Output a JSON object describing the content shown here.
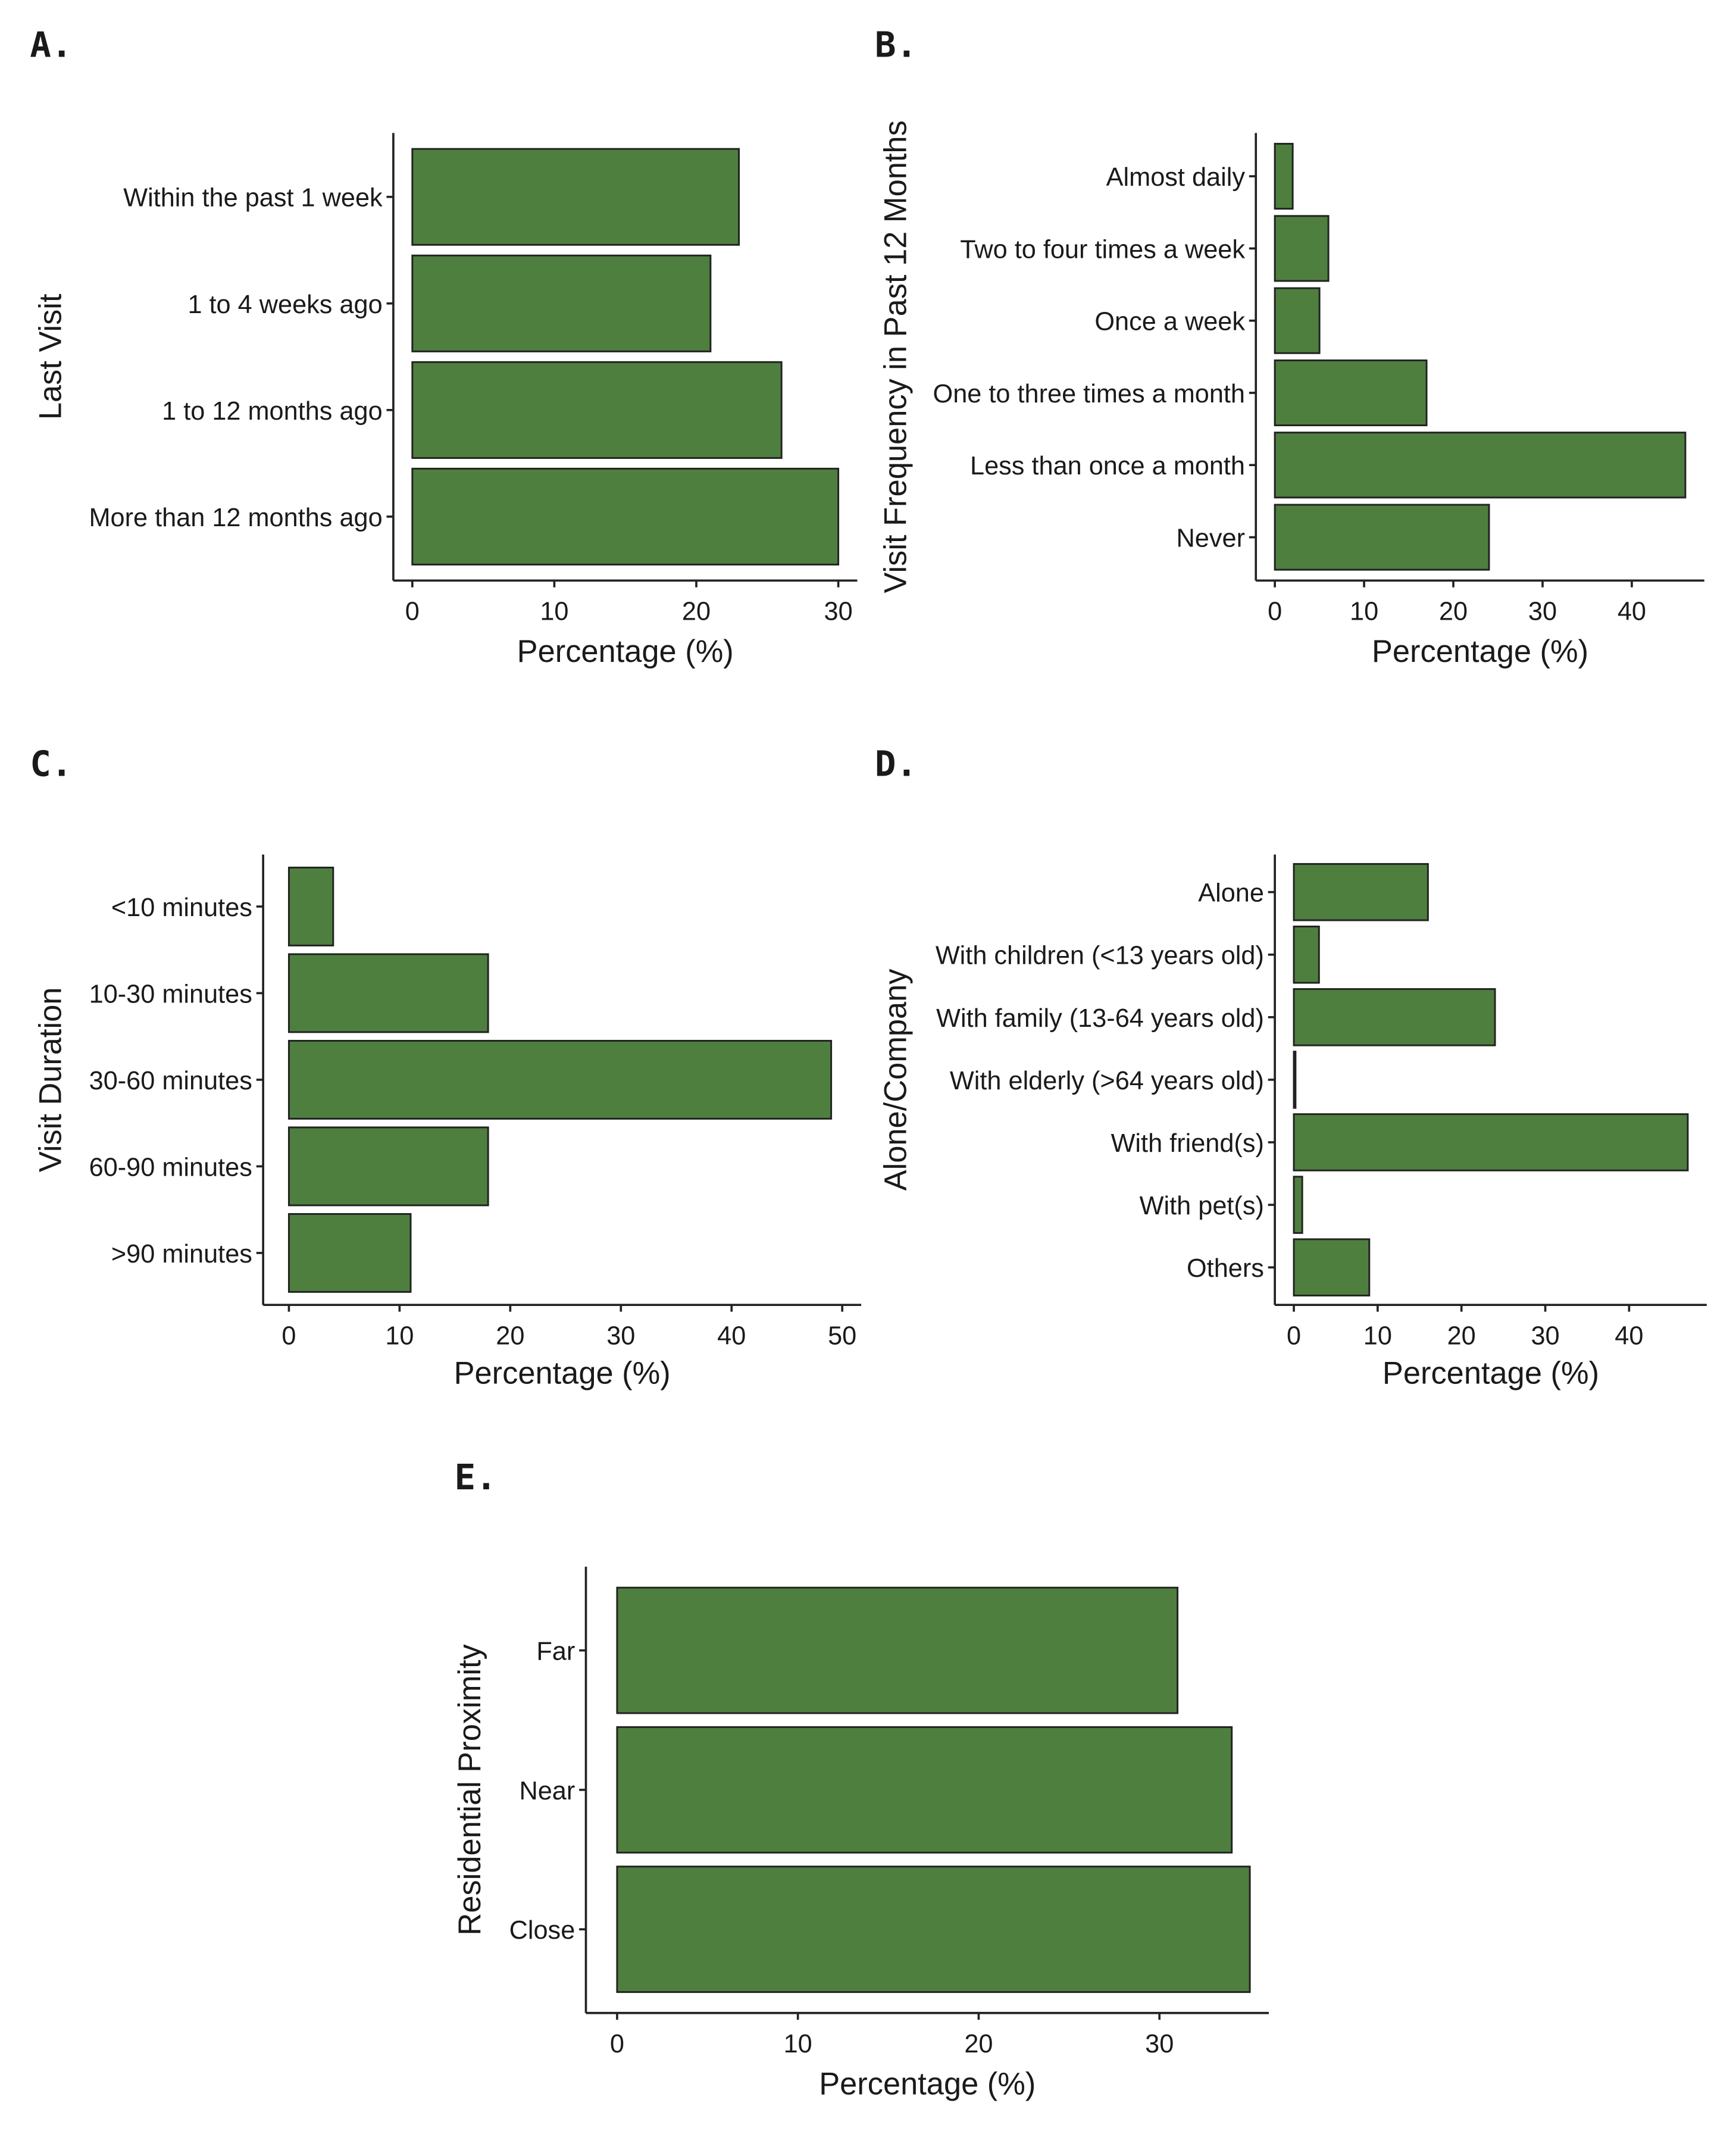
{
  "colors": {
    "bar_fill": "#4e7f3e",
    "bar_stroke": "#222222"
  },
  "chart_data": [
    {
      "type": "bar",
      "orientation": "horizontal",
      "panel": "A.",
      "title": "",
      "ylabel": "Last Visit",
      "xlabel": "Percentage (%)",
      "categories": [
        "Within the past 1 week",
        "1 to 4 weeks ago",
        "1 to 12 months ago",
        "More than 12 months ago"
      ],
      "values": [
        23,
        21,
        26,
        30
      ],
      "xticks": [
        0,
        10,
        20,
        30
      ],
      "xlim": [
        0,
        30
      ],
      "grid": false
    },
    {
      "type": "bar",
      "orientation": "horizontal",
      "panel": "B.",
      "title": "",
      "ylabel": "Visit Frequency in Past 12 Months",
      "xlabel": "Percentage (%)",
      "categories": [
        "Almost daily",
        "Two to four times a week",
        "Once a week",
        "One to three times a month",
        "Less than once a month",
        "Never"
      ],
      "values": [
        2,
        6,
        5,
        17,
        46,
        24
      ],
      "xticks": [
        0,
        10,
        20,
        30,
        40
      ],
      "xlim": [
        0,
        46
      ],
      "grid": false
    },
    {
      "type": "bar",
      "orientation": "horizontal",
      "panel": "C.",
      "title": "",
      "ylabel": "Visit Duration",
      "xlabel": "Percentage (%)",
      "categories": [
        "<10 minutes",
        "10-30 minutes",
        "30-60 minutes",
        "60-90 minutes",
        ">90 minutes"
      ],
      "values": [
        4,
        18,
        49,
        18,
        11
      ],
      "xticks": [
        0,
        10,
        20,
        30,
        40,
        50
      ],
      "xlim": [
        0,
        50
      ],
      "grid": false
    },
    {
      "type": "bar",
      "orientation": "horizontal",
      "panel": "D.",
      "title": "",
      "ylabel": "Alone/Company",
      "xlabel": "Percentage (%)",
      "categories": [
        "Alone",
        "With children (<13 years old)",
        "With family (13-64 years old)",
        "With elderly (>64 years old)",
        "With friend(s)",
        "With pet(s)",
        "Others"
      ],
      "values": [
        16,
        3,
        24,
        0.2,
        47,
        1,
        9
      ],
      "xticks": [
        0,
        10,
        20,
        30,
        40
      ],
      "xlim": [
        0,
        47
      ],
      "grid": false
    },
    {
      "type": "bar",
      "orientation": "horizontal",
      "panel": "E.",
      "title": "",
      "ylabel": "Residential Proximity",
      "xlabel": "Percentage (%)",
      "categories": [
        "Far",
        "Near",
        "Close"
      ],
      "values": [
        31,
        34,
        35
      ],
      "xticks": [
        0,
        10,
        20,
        30
      ],
      "xlim": [
        0,
        35
      ],
      "grid": false
    }
  ]
}
